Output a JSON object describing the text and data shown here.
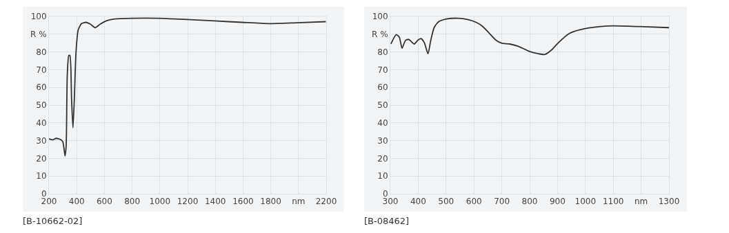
{
  "chart_data": [
    {
      "type": "line",
      "x": [
        200,
        229,
        252,
        284,
        300,
        316,
        324,
        332,
        343,
        351,
        363,
        373,
        383,
        395,
        411,
        435,
        467,
        498,
        533,
        570,
        617,
        673,
        800,
        990,
        1197,
        1395,
        1593,
        1784,
        1990,
        2197
      ],
      "series": [
        {
          "color": "#333333",
          "values": [
            31,
            30.5,
            31.3,
            30.6,
            29.3,
            21.4,
            27,
            66.8,
            78,
            78,
            53.6,
            37.2,
            53.6,
            80,
            92.4,
            96,
            96.7,
            95.7,
            93.7,
            95.7,
            97.6,
            98.6,
            99,
            99,
            98.3,
            97.5,
            96.7,
            96,
            96.5,
            97.1
          ]
        }
      ],
      "xlim": [
        200,
        2200
      ],
      "xticks": [
        200,
        400,
        600,
        800,
        1000,
        1200,
        1400,
        1600,
        1800,
        {
          "value": 2000,
          "label": "nm"
        },
        2200
      ],
      "ylim": [
        0,
        100
      ],
      "yticks": [
        0,
        10,
        20,
        30,
        40,
        50,
        60,
        70,
        80,
        {
          "value": 90,
          "label": "R %"
        },
        100
      ],
      "grid": true,
      "marker": "none",
      "line_style": "solid",
      "annotations": [
        "[B-10662-02]"
      ]
    },
    {
      "type": "line",
      "x": [
        302,
        321,
        332,
        342,
        354,
        366,
        386,
        398,
        410,
        422,
        435,
        445,
        457,
        473,
        501,
        545,
        577,
        608,
        632,
        656,
        680,
        700,
        728,
        759,
        799,
        831,
        855,
        879,
        903,
        942,
        982,
        1054,
        1101,
        1197,
        1300
      ],
      "series": [
        {
          "color": "#333333",
          "values": [
            84.5,
            89.8,
            88.4,
            82.1,
            86.5,
            87.1,
            84.5,
            86.5,
            87.5,
            85.2,
            79,
            86.5,
            93.7,
            97,
            98.6,
            99,
            98.3,
            96.7,
            94.3,
            90.4,
            86.5,
            84.9,
            84.5,
            83.2,
            80.3,
            79,
            78.6,
            81.2,
            85.2,
            90.4,
            92.6,
            94.3,
            94.7,
            94.3,
            93.7
          ]
        }
      ],
      "xlim": [
        300,
        1300
      ],
      "xticks": [
        300,
        400,
        500,
        600,
        700,
        800,
        900,
        1000,
        1100,
        {
          "value": 1200,
          "label": "nm"
        },
        1300
      ],
      "ylim": [
        0,
        100
      ],
      "yticks": [
        0,
        10,
        20,
        30,
        40,
        50,
        60,
        70,
        80,
        {
          "value": 90,
          "label": "R %"
        },
        100
      ],
      "grid": true,
      "marker": "none",
      "line_style": "solid",
      "annotations": [
        "[B-08462]"
      ]
    }
  ]
}
